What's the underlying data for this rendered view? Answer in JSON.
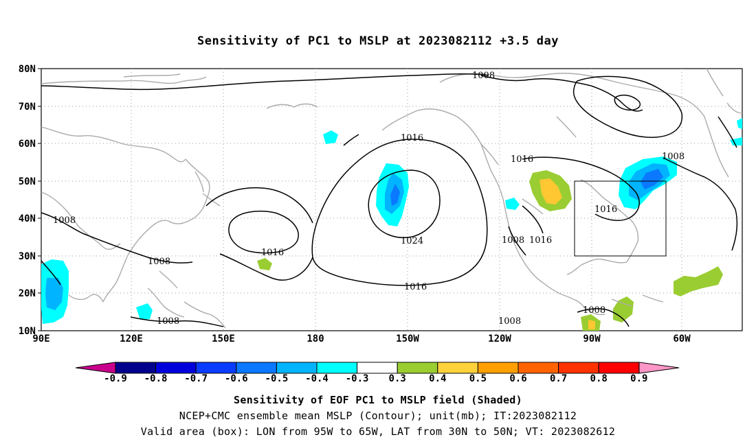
{
  "title": "Sensitivity of PC1 to MSLP at 2023082112 +3.5 day",
  "map": {
    "lat_labels": [
      "80N",
      "70N",
      "60N",
      "50N",
      "40N",
      "30N",
      "20N",
      "10N"
    ],
    "lon_labels": [
      "90E",
      "120E",
      "150E",
      "180",
      "150W",
      "120W",
      "90W",
      "60W"
    ],
    "contour_labels": [
      "1008",
      "1016",
      "1016",
      "1008",
      "1008",
      "1016",
      "1008",
      "1008",
      "1024",
      "1016",
      "1016",
      "1008",
      "1016",
      "1008",
      "1008"
    ],
    "valid_box": {
      "lon_from": "95W",
      "lon_to": "65W",
      "lat_from": "30N",
      "lat_to": "50N"
    },
    "colors": {
      "neg_04": "#00ffff",
      "neg_05": "#00c8ff",
      "neg_06": "#0096ff",
      "pos_03": "#9acd32",
      "pos_04": "#ffc832",
      "coast": "#aaaaaa",
      "contour": "#000000"
    }
  },
  "colorbar": {
    "labels": [
      "-0.9",
      "-0.8",
      "-0.7",
      "-0.6",
      "-0.5",
      "-0.4",
      "-0.3",
      "0.3",
      "0.4",
      "0.5",
      "0.6",
      "0.7",
      "0.8",
      "0.9"
    ],
    "colors": [
      "#00008c",
      "#0000dc",
      "#0a3cff",
      "#0a78ff",
      "#00b4ff",
      "#00ffff",
      "#ffffff",
      "#9acd32",
      "#ffd23c",
      "#ffa000",
      "#ff6400",
      "#ff3200",
      "#ff0000"
    ],
    "low_end_color": "#c8008c",
    "high_end_color": "#ff96c8"
  },
  "captions": [
    "Sensitivity of EOF PC1 to MSLP field (Shaded)",
    "NCEP+CMC ensemble mean MSLP (Contour); unit(mb); IT:2023082112",
    "Valid area (box): LON from 95W to 65W, LAT from 30N to 50N; VT: 2023082612"
  ]
}
